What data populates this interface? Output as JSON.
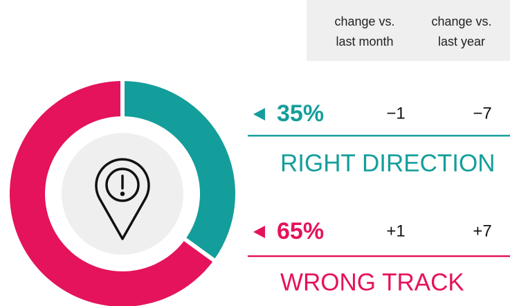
{
  "chart_data": {
    "type": "pie",
    "donut": true,
    "categories": [
      "RIGHT DIRECTION",
      "WRONG TRACK"
    ],
    "values": [
      35,
      65
    ],
    "value_labels": [
      "35%",
      "65%"
    ],
    "colors": [
      "#149e9b",
      "#e5125c"
    ],
    "change_columns": [
      [
        "change vs.",
        "last month"
      ],
      [
        "change vs.",
        "last year"
      ]
    ],
    "change_values": [
      [
        -1,
        -7
      ],
      [
        1,
        7
      ]
    ],
    "change_labels": [
      [
        "−1",
        "−7"
      ],
      [
        "+1",
        "+7"
      ]
    ]
  }
}
